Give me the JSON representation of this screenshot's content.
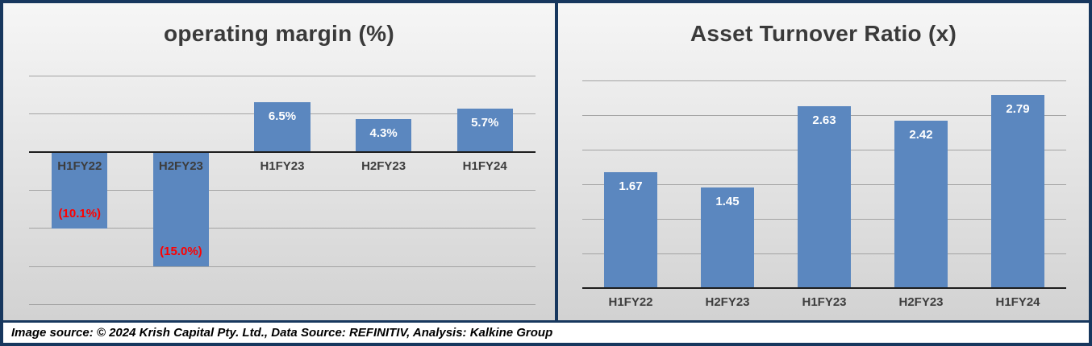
{
  "caption": "Image source: © 2024 Krish Capital Pty. Ltd., Data Source: REFINITIV, Analysis: Kalkine Group",
  "colors": {
    "bar": "#5b87bf",
    "positive_label": "#ffffff",
    "negative_label": "#ff0000",
    "border": "#17375e"
  },
  "chart_data": [
    {
      "type": "bar",
      "title": "operating margin (%)",
      "categories": [
        "H1FY22",
        "H2FY23",
        "H1FY23",
        "H2FY23",
        "H1FY24"
      ],
      "values": [
        -10.1,
        -15.0,
        6.5,
        4.3,
        5.7
      ],
      "labels": [
        "(10.1%)",
        "(15.0%)",
        "6.5%",
        "4.3%",
        "5.7%"
      ],
      "ylabel": "",
      "xlabel": "",
      "ylim": [
        -20,
        10
      ],
      "gridline_step": 5,
      "grid": "on",
      "legend": "none"
    },
    {
      "type": "bar",
      "title": "Asset Turnover Ratio (x)",
      "categories": [
        "H1FY22",
        "H2FY23",
        "H1FY23",
        "H2FY23",
        "H1FY24"
      ],
      "values": [
        1.67,
        1.45,
        2.63,
        2.42,
        2.79
      ],
      "labels": [
        "1.67",
        "1.45",
        "2.63",
        "2.42",
        "2.79"
      ],
      "ylabel": "",
      "xlabel": "",
      "ylim": [
        0,
        3
      ],
      "gridline_step": 0.5,
      "grid": "on",
      "legend": "none"
    }
  ]
}
